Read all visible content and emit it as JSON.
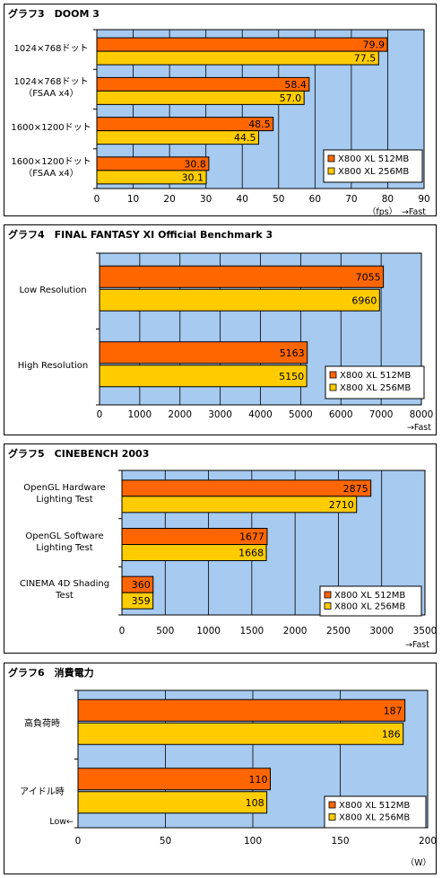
{
  "colors": {
    "series1": "#ff6600",
    "series2": "#ffcc00",
    "plot_bg": "#a6caf0"
  },
  "chart_data": [
    {
      "type": "bar",
      "title": "グラフ3　DOOM 3",
      "categories": [
        [
          "1024×768ドット"
        ],
        [
          "1024×768ドット",
          "（FSAA x4）"
        ],
        [
          "1600×1200ドット"
        ],
        [
          "1600×1200ドット",
          "（FSAA x4）"
        ]
      ],
      "series": [
        {
          "name": "X800 XL 512MB",
          "values": [
            79.9,
            58.4,
            48.5,
            30.8
          ]
        },
        {
          "name": "X800 XL 256MB",
          "values": [
            77.5,
            57.0,
            44.5,
            30.1
          ]
        }
      ],
      "xlim": [
        0,
        90
      ],
      "ticks": [
        "0",
        "10",
        "20",
        "30",
        "40",
        "50",
        "60",
        "70",
        "80",
        "90"
      ],
      "axis_note": "（fps）　→Fast",
      "legend_position": "bottom-right"
    },
    {
      "type": "bar",
      "title": "グラフ4　FINAL FANTASY XI Official Benchmark 3",
      "categories": [
        [
          "Low Resolution"
        ],
        [
          "High Resolution"
        ]
      ],
      "series": [
        {
          "name": "X800 XL 512MB",
          "values": [
            7055,
            5163
          ]
        },
        {
          "name": "X800 XL 256MB",
          "values": [
            6960,
            5150
          ]
        }
      ],
      "xlim": [
        0,
        8000
      ],
      "ticks": [
        "0",
        "1000",
        "2000",
        "3000",
        "4000",
        "5000",
        "6000",
        "7000",
        "8000"
      ],
      "axis_note": "→Fast",
      "legend_position": "bottom-right"
    },
    {
      "type": "bar",
      "title": "グラフ5　CINEBENCH 2003",
      "categories": [
        [
          "OpenGL Hardware",
          "Lighting Test"
        ],
        [
          "OpenGL Software",
          "Lighting Test"
        ],
        [
          "CINEMA 4D Shading",
          "Test"
        ]
      ],
      "series": [
        {
          "name": "X800 XL 512MB",
          "values": [
            2875,
            1677,
            360
          ]
        },
        {
          "name": "X800 XL 256MB",
          "values": [
            2710,
            1668,
            359
          ]
        }
      ],
      "xlim": [
        0,
        3500
      ],
      "ticks": [
        "0",
        "500",
        "1000",
        "1500",
        "2000",
        "2500",
        "3000",
        "3500"
      ],
      "axis_note": "→Fast",
      "legend_position": "bottom-right"
    },
    {
      "type": "bar",
      "title": "グラフ6　消費電力",
      "categories": [
        [
          "高負荷時"
        ],
        [
          "アイドル時"
        ]
      ],
      "series": [
        {
          "name": "X800 XL 512MB",
          "values": [
            187,
            110
          ]
        },
        {
          "name": "X800 XL 256MB",
          "values": [
            186,
            108
          ]
        }
      ],
      "xlim": [
        0,
        200
      ],
      "ticks": [
        "0",
        "50",
        "100",
        "150",
        "200"
      ],
      "axis_note": "（W）",
      "axis_start_note": "Low←",
      "legend_position": "bottom-right"
    }
  ]
}
